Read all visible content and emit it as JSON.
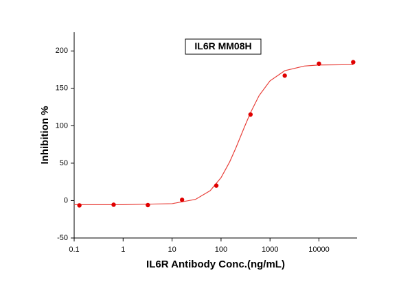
{
  "chart_data": {
    "type": "scatter",
    "title": "IL6R MM08H",
    "x_label": "IL6R Antibody Conc.(ng/mL)",
    "y_label": "Inhibition %",
    "xscale": "log",
    "xlim": [
      0.1,
      60000
    ],
    "xticks": [
      0.1,
      1,
      10,
      100,
      1000,
      10000
    ],
    "ylim": [
      -50,
      225
    ],
    "yticks": [
      -50,
      0,
      50,
      100,
      150,
      200
    ],
    "series": [
      {
        "type": "scatter",
        "color": "#e00000",
        "x": [
          0.128,
          0.64,
          3.2,
          16,
          80,
          400,
          2000,
          10000,
          50000
        ],
        "values": [
          -6.4,
          -5.5,
          -6,
          1,
          20,
          115,
          167,
          183,
          185
        ]
      },
      {
        "type": "line",
        "color": "#e8403a",
        "x": [
          0.1,
          1,
          10,
          30,
          60,
          100,
          150,
          200,
          300,
          400,
          600,
          1000,
          2000,
          5000,
          10000,
          50000
        ],
        "values": [
          -5.5,
          -5.5,
          -4.1,
          1.6,
          13.2,
          30.6,
          51.7,
          70.1,
          98.3,
          117.5,
          140.4,
          160,
          173.6,
          179.8,
          181.2,
          181.7
        ]
      }
    ]
  }
}
